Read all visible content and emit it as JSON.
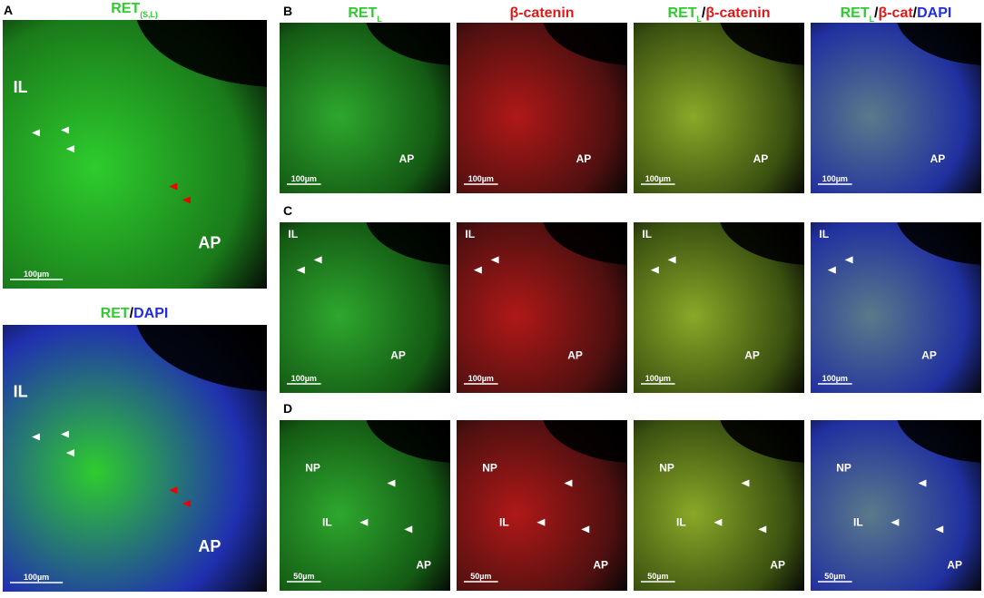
{
  "panel_a": {
    "letter": "A",
    "images": [
      {
        "title": [
          {
            "text": "RET",
            "color": "#2ecc2e"
          },
          {
            "text": "(S,L)",
            "color": "#2ecc2e",
            "sub": true
          }
        ],
        "labels": [
          "IL",
          "AP"
        ],
        "scale": "100µm",
        "tint": [
          "#2ecc2e",
          "#1a7a1a"
        ]
      },
      {
        "title": [
          {
            "text": "RET",
            "color": "#2ecc2e"
          },
          {
            "text": "/",
            "color": "#000000"
          },
          {
            "text": "DAPI",
            "color": "#1f2fe0"
          }
        ],
        "labels": [
          "IL",
          "AP"
        ],
        "scale": "100µm",
        "tint": [
          "#2ecc2e",
          "#2030b0"
        ]
      }
    ]
  },
  "columns": [
    {
      "title": [
        {
          "text": "RET",
          "color": "#2ecc2e"
        },
        {
          "text": "L",
          "color": "#2ecc2e",
          "sub": true
        }
      ],
      "tint": [
        "#2ea82e",
        "#145a14"
      ]
    },
    {
      "title": [
        {
          "text": "β-catenin",
          "color": "#e01818"
        }
      ],
      "tint": [
        "#b01818",
        "#501010"
      ]
    },
    {
      "title": [
        {
          "text": "RET",
          "color": "#2ecc2e"
        },
        {
          "text": "L",
          "color": "#2ecc2e",
          "sub": true
        },
        {
          "text": "/",
          "color": "#000000"
        },
        {
          "text": "β-catenin",
          "color": "#e01818"
        }
      ],
      "tint": [
        "#8aa828",
        "#3a5010"
      ]
    },
    {
      "title": [
        {
          "text": "RET",
          "color": "#2ecc2e"
        },
        {
          "text": "L",
          "color": "#2ecc2e",
          "sub": true
        },
        {
          "text": "/",
          "color": "#000000"
        },
        {
          "text": "β-cat",
          "color": "#e01818"
        },
        {
          "text": "/",
          "color": "#000000"
        },
        {
          "text": "DAPI",
          "color": "#1f2fe0"
        }
      ],
      "tint": [
        "#5a7a8a",
        "#2030a0"
      ]
    }
  ],
  "rows": [
    {
      "letter": "B",
      "labels": [
        "AP"
      ],
      "scale": "100µm"
    },
    {
      "letter": "C",
      "labels": [
        "IL",
        "AP"
      ],
      "scale": "100µm"
    },
    {
      "letter": "D",
      "labels": [
        "NP",
        "IL",
        "AP"
      ],
      "scale": "50µm"
    }
  ]
}
